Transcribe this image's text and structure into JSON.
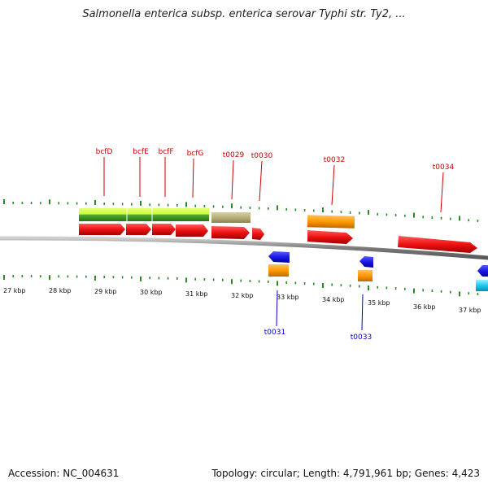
{
  "title": "Salmonella enterica subsp. enterica serovar Typhi str. Ty2, ...",
  "footer": {
    "accession": "Accession: NC_004631",
    "summary": "Topology: circular; Length: 4,791,961 bp; Genes: 4,423"
  },
  "colors": {
    "backbone": "#8a8a8a",
    "forward_cds": "#ee1111",
    "reverse_cds": "#1a1ae6",
    "trna": "#ff9900",
    "cyan_feature": "#22c8f0",
    "operon_light": "#ccff33",
    "operon_dark": "#339922",
    "tan_feature": "#b8b07a",
    "tick_green": "#2a8a2a",
    "label_red": "#cc0000",
    "label_blue": "#0000cc"
  },
  "top_labels": [
    "bcfD",
    "bcfE",
    "bcfF",
    "bcfG",
    "t0029",
    "t0030",
    "t0032",
    "t0034"
  ],
  "bottom_labels": [
    "t0031",
    "t0033"
  ],
  "kbp_labels": [
    "27 kbp",
    "28 kbp",
    "29 kbp",
    "30 kbp",
    "31 kbp",
    "32 kbp",
    "33 kbp",
    "34 kbp",
    "35 kbp",
    "36 kbp",
    "37 kbp"
  ]
}
